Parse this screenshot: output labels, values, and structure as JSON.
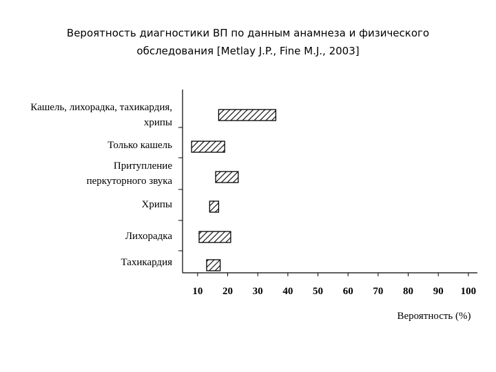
{
  "chart_data": {
    "type": "range-bar",
    "title": [
      "Вероятность диагностики ВП по данным анамнеза и физического",
      "обследования [Metlay J.P., Fine M.J., 2003]"
    ],
    "categories": [
      [
        "Кашель, лихорадка, тахикардия,",
        "хрипы"
      ],
      [
        "Только кашель"
      ],
      [
        "Притупление",
        "перкуторного звука"
      ],
      [
        "Хрипы"
      ],
      [
        "Лихорадка"
      ],
      [
        "Тахикардия"
      ]
    ],
    "values": [
      [
        17,
        36
      ],
      [
        8,
        19
      ],
      [
        16,
        23.5
      ],
      [
        14,
        17
      ],
      [
        10.5,
        21
      ],
      [
        13,
        17.5
      ]
    ],
    "xlim": [
      5,
      103
    ],
    "xticks": [
      10,
      20,
      30,
      40,
      50,
      60,
      70,
      80,
      90,
      100
    ],
    "xlabel": "Вероятность (%)",
    "color": "#000000"
  }
}
